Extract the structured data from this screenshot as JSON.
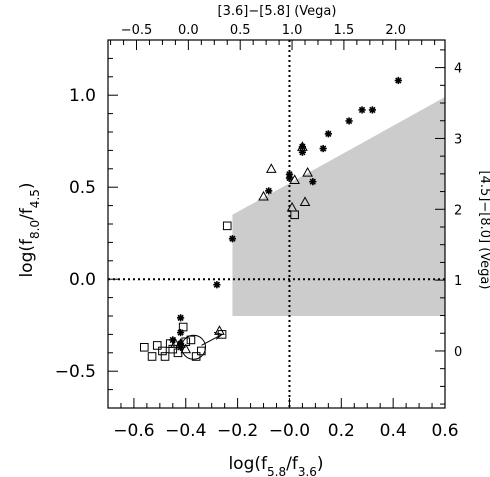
{
  "chart_data": {
    "type": "scatter",
    "xlabel": "log(f",
    "xlabel_sub_a": "5.8",
    "xlabel_mid": "/f",
    "xlabel_sub_b": "3.6",
    "xlabel_end": ")",
    "ylabel": "log(f",
    "ylabel_sub_a": "8.0",
    "ylabel_mid": "/f",
    "ylabel_sub_b": "4.5",
    "ylabel_end": ")",
    "top_xlabel": "[3.6]−[5.8] (Vega)",
    "right_ylabel": "[4.5]−[8.0] (Vega)",
    "xlim": [
      -0.7,
      0.6
    ],
    "ylim": [
      -0.7,
      1.3
    ],
    "x_ticks": [
      -0.6,
      -0.4,
      -0.2,
      0.0,
      0.2,
      0.4,
      0.6
    ],
    "x_tick_labels": [
      "−0.6",
      "−0.4",
      "−0.2",
      "−0.0",
      "0.2",
      "0.4",
      "0.6"
    ],
    "y_ticks": [
      -0.5,
      0.0,
      0.5,
      1.0
    ],
    "y_tick_labels": [
      "−0.5",
      "0.0",
      "0.5",
      "1.0"
    ],
    "top_ticks": [
      -0.5,
      0.0,
      0.5,
      1.0,
      1.5,
      2.0
    ],
    "top_tick_labels": [
      "−0.5",
      "0.0",
      "0.5",
      "1.0",
      "1.5",
      "2.0"
    ],
    "right_ticks": [
      0,
      1,
      2,
      3,
      4
    ],
    "right_tick_labels": [
      "0",
      "1",
      "2",
      "3",
      "4"
    ],
    "top_axis_to_x": {
      "slope": 0.4,
      "intercept": -0.39
    },
    "right_axis_to_y": {
      "slope": 0.385,
      "intercept": -0.39
    },
    "reference_lines": {
      "x": 0.0,
      "y": 0.0
    },
    "shaded_region": [
      [
        -0.22,
        -0.2
      ],
      [
        0.6,
        -0.2
      ],
      [
        0.6,
        0.99
      ],
      [
        -0.22,
        0.35
      ]
    ],
    "series": [
      {
        "marker": "asterisk",
        "points": [
          [
            -0.42,
            -0.21
          ],
          [
            -0.42,
            -0.29
          ],
          [
            -0.42,
            -0.35
          ],
          [
            -0.42,
            -0.37
          ],
          [
            -0.45,
            -0.33
          ],
          [
            -0.28,
            -0.03
          ],
          [
            -0.22,
            0.22
          ],
          [
            -0.08,
            0.48
          ],
          [
            0.0,
            0.55
          ],
          [
            0.0,
            0.57
          ],
          [
            0.05,
            0.69
          ],
          [
            0.05,
            0.72
          ],
          [
            0.09,
            0.53
          ],
          [
            0.13,
            0.71
          ],
          [
            0.15,
            0.79
          ],
          [
            0.23,
            0.86
          ],
          [
            0.28,
            0.92
          ],
          [
            0.32,
            0.92
          ],
          [
            0.42,
            1.08
          ]
        ]
      },
      {
        "marker": "triangle",
        "points": [
          [
            -0.44,
            -0.35
          ],
          [
            -0.42,
            -0.35
          ],
          [
            -0.4,
            -0.38
          ],
          [
            -0.27,
            -0.28
          ],
          [
            -0.1,
            0.45
          ],
          [
            -0.07,
            0.6
          ],
          [
            0.01,
            0.39
          ],
          [
            0.02,
            0.54
          ],
          [
            0.05,
            0.72
          ],
          [
            0.06,
            0.42
          ],
          [
            0.07,
            0.58
          ]
        ]
      },
      {
        "marker": "square",
        "points": [
          [
            -0.56,
            -0.37
          ],
          [
            -0.53,
            -0.42
          ],
          [
            -0.51,
            -0.36
          ],
          [
            -0.49,
            -0.39
          ],
          [
            -0.48,
            -0.42
          ],
          [
            -0.46,
            -0.35
          ],
          [
            -0.45,
            -0.38
          ],
          [
            -0.43,
            -0.4
          ],
          [
            -0.41,
            -0.26
          ],
          [
            -0.4,
            -0.34
          ],
          [
            -0.38,
            -0.33
          ],
          [
            -0.36,
            -0.42
          ],
          [
            -0.34,
            -0.39
          ],
          [
            -0.26,
            -0.3
          ],
          [
            -0.24,
            0.29
          ],
          [
            0.02,
            0.35
          ]
        ]
      }
    ],
    "annotation": {
      "circle_center": [
        -0.37,
        -0.37
      ],
      "arrow_to": [
        -0.26,
        -0.3
      ]
    }
  }
}
